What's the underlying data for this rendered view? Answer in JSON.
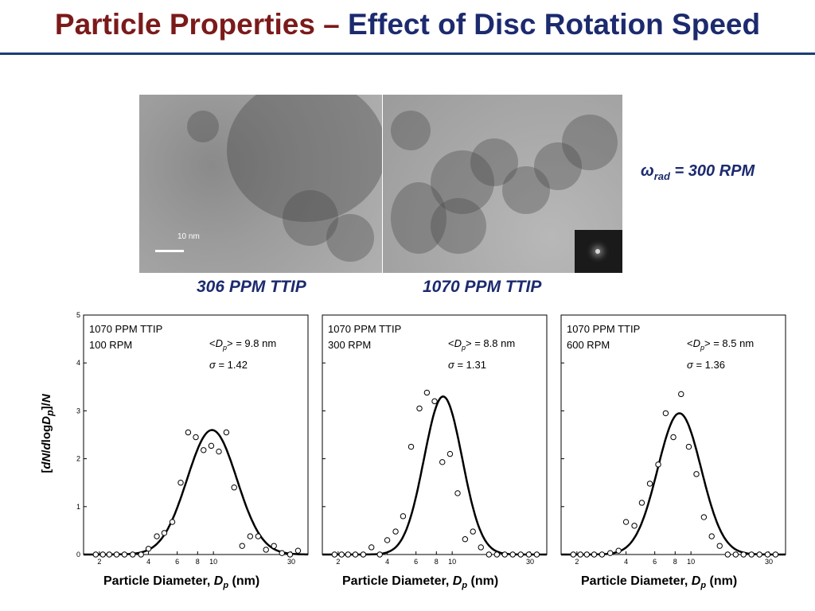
{
  "title": {
    "part1": "Particle Properties –",
    "part2": "Effect of Disc Rotation Speed"
  },
  "images": {
    "scale_bar": "10 nm",
    "omega_symbol": "ω",
    "omega_sub": "rad",
    "omega_value": "= 300 RPM",
    "caption_left": "306 PPM TTIP",
    "caption_right": "1070 PPM TTIP"
  },
  "axis_text": {
    "ylabel_bracket_open": "[",
    "ylabel_dN": "dN",
    "ylabel_slash": "/",
    "ylabel_dlog": "d",
    "ylabel_log": "log",
    "ylabel_D": "D",
    "ylabel_p": "p",
    "ylabel_close": "]/",
    "ylabel_N": "N",
    "xlabel_main": "Particle Diameter,",
    "xlabel_D": "D",
    "xlabel_p": "p",
    "xlabel_unit": "(nm)"
  },
  "chart_data": [
    {
      "type": "scatter",
      "line1": "1070 PPM TTIP",
      "line2": "100 RPM",
      "dp_label": "= 9.8 nm",
      "sigma_label": "= 1.42",
      "xlim": [
        1.6,
        38
      ],
      "ylim": [
        0,
        5
      ],
      "x_scale": "log",
      "xticks": [
        "2",
        "4",
        "6",
        "8",
        "10",
        "30"
      ],
      "yticks": [
        "0",
        "1",
        "2",
        "3",
        "4",
        "5"
      ],
      "fit": {
        "mean_nm": 9.8,
        "sigma_g": 1.42,
        "peak": 2.6
      },
      "points": [
        [
          1.9,
          0
        ],
        [
          2.1,
          0
        ],
        [
          2.3,
          0
        ],
        [
          2.55,
          0
        ],
        [
          2.85,
          0
        ],
        [
          3.2,
          0
        ],
        [
          3.6,
          0
        ],
        [
          4.0,
          0.12
        ],
        [
          4.5,
          0.38
        ],
        [
          5.0,
          0.45
        ],
        [
          5.6,
          0.68
        ],
        [
          6.3,
          1.5
        ],
        [
          7.0,
          2.55
        ],
        [
          7.8,
          2.45
        ],
        [
          8.7,
          2.18
        ],
        [
          9.7,
          2.27
        ],
        [
          10.8,
          2.15
        ],
        [
          12.0,
          2.55
        ],
        [
          13.4,
          1.4
        ],
        [
          15.0,
          0.18
        ],
        [
          16.8,
          0.38
        ],
        [
          18.8,
          0.38
        ],
        [
          21.0,
          0.1
        ],
        [
          23.5,
          0.18
        ],
        [
          26.3,
          0.03
        ],
        [
          29.5,
          0
        ],
        [
          33.0,
          0.08
        ]
      ]
    },
    {
      "type": "scatter",
      "line1": "1070 PPM TTIP",
      "line2": "300 RPM",
      "dp_label": "= 8.8 nm",
      "sigma_label": "= 1.31",
      "xlim": [
        1.6,
        38
      ],
      "ylim": [
        0,
        5
      ],
      "x_scale": "log",
      "xticks": [
        "2",
        "4",
        "6",
        "8",
        "10",
        "30"
      ],
      "yticks": [
        "0",
        "1",
        "2",
        "3",
        "4",
        "5"
      ],
      "fit": {
        "mean_nm": 8.8,
        "sigma_g": 1.31,
        "peak": 3.3
      },
      "points": [
        [
          1.9,
          0
        ],
        [
          2.1,
          0
        ],
        [
          2.3,
          0
        ],
        [
          2.55,
          0
        ],
        [
          2.85,
          0
        ],
        [
          3.2,
          0.15
        ],
        [
          3.6,
          0
        ],
        [
          4.0,
          0.3
        ],
        [
          4.5,
          0.48
        ],
        [
          5.0,
          0.8
        ],
        [
          5.6,
          2.25
        ],
        [
          6.3,
          3.05
        ],
        [
          7.0,
          3.38
        ],
        [
          7.8,
          3.2
        ],
        [
          8.7,
          1.93
        ],
        [
          9.7,
          2.1
        ],
        [
          10.8,
          1.28
        ],
        [
          12.0,
          0.32
        ],
        [
          13.4,
          0.48
        ],
        [
          15.0,
          0.15
        ],
        [
          16.8,
          0
        ],
        [
          18.8,
          0
        ],
        [
          21.0,
          0
        ],
        [
          23.5,
          0
        ],
        [
          26.3,
          0
        ],
        [
          29.5,
          0
        ],
        [
          33.0,
          0
        ]
      ]
    },
    {
      "type": "scatter",
      "line1": "1070 PPM TTIP",
      "line2": "600 RPM",
      "dp_label": "= 8.5 nm",
      "sigma_label": "= 1.36",
      "xlim": [
        1.6,
        38
      ],
      "ylim": [
        0,
        5
      ],
      "x_scale": "log",
      "xticks": [
        "2",
        "4",
        "6",
        "8",
        "10",
        "30"
      ],
      "yticks": [
        "0",
        "1",
        "2",
        "3",
        "4",
        "5"
      ],
      "fit": {
        "mean_nm": 8.5,
        "sigma_g": 1.36,
        "peak": 2.95
      },
      "points": [
        [
          1.9,
          0
        ],
        [
          2.1,
          0
        ],
        [
          2.3,
          0
        ],
        [
          2.55,
          0
        ],
        [
          2.85,
          0
        ],
        [
          3.2,
          0.03
        ],
        [
          3.6,
          0.08
        ],
        [
          4.0,
          0.68
        ],
        [
          4.5,
          0.6
        ],
        [
          5.0,
          1.08
        ],
        [
          5.6,
          1.48
        ],
        [
          6.3,
          1.88
        ],
        [
          7.0,
          2.95
        ],
        [
          7.8,
          2.45
        ],
        [
          8.7,
          3.35
        ],
        [
          9.7,
          2.25
        ],
        [
          10.8,
          1.68
        ],
        [
          12.0,
          0.78
        ],
        [
          13.4,
          0.38
        ],
        [
          15.0,
          0.18
        ],
        [
          16.8,
          0
        ],
        [
          18.8,
          0
        ],
        [
          21.0,
          0
        ],
        [
          23.5,
          0
        ],
        [
          26.3,
          0
        ],
        [
          29.5,
          0
        ],
        [
          33.0,
          0
        ]
      ]
    }
  ]
}
